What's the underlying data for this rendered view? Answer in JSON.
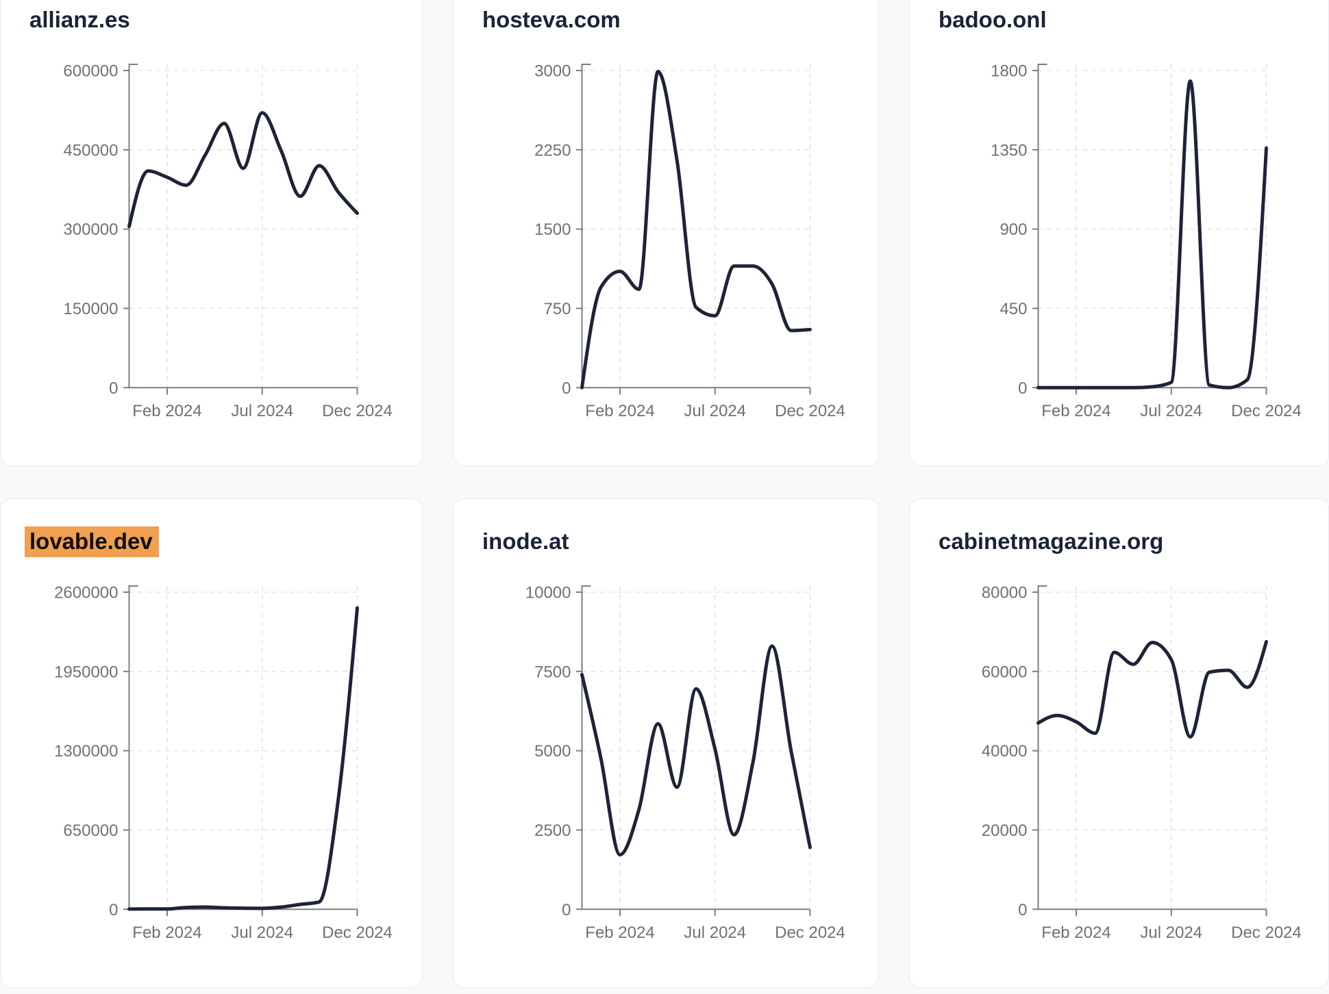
{
  "page": {
    "background_color": "#f8f9fb",
    "layout": "3x2 grid of chart cards"
  },
  "theme": {
    "card_background": "#ffffff",
    "card_border_color": "#e8ebf0",
    "title_color": "#1a2337",
    "highlight_color": "#f0a04f",
    "highlight_text_color": "#0e0e0e",
    "line_color": "#1d2438",
    "axis_color": "#7a7e83",
    "tick_label_color": "#6d7175",
    "gridline_color": "#e4e5e8"
  },
  "chart_data": [
    {
      "type": "line",
      "title": "allianz.es",
      "highlighted": false,
      "x_tick_labels": [
        "Feb 2024",
        "Jul 2024",
        "Dec 2024"
      ],
      "x_tick_positions": [
        2,
        7,
        12
      ],
      "x_points": 13,
      "y_ticks": [
        0,
        150000,
        300000,
        450000,
        600000
      ],
      "ylim": [
        0,
        600000
      ],
      "grid": "dashed",
      "values": [
        305000,
        410000,
        398000,
        383000,
        440000,
        500000,
        415000,
        520000,
        448000,
        362000,
        420000,
        370000,
        330000
      ]
    },
    {
      "type": "line",
      "title": "hosteva.com",
      "highlighted": false,
      "x_tick_labels": [
        "Feb 2024",
        "Jul 2024",
        "Dec 2024"
      ],
      "x_tick_positions": [
        2,
        7,
        12
      ],
      "x_points": 13,
      "y_ticks": [
        0,
        750,
        1500,
        2250,
        3000
      ],
      "ylim": [
        0,
        3000
      ],
      "grid": "dashed",
      "values": [
        0,
        950,
        1100,
        930,
        2990,
        2150,
        760,
        680,
        1150,
        1150,
        980,
        540,
        550
      ]
    },
    {
      "type": "line",
      "title": "badoo.onl",
      "highlighted": false,
      "x_tick_labels": [
        "Feb 2024",
        "Jul 2024",
        "Dec 2024"
      ],
      "x_tick_positions": [
        2,
        7,
        12
      ],
      "x_points": 13,
      "y_ticks": [
        0,
        450,
        900,
        1350,
        1800
      ],
      "ylim": [
        0,
        1800
      ],
      "grid": "dashed",
      "values": [
        0,
        0,
        0,
        0,
        0,
        0,
        5,
        30,
        1740,
        15,
        0,
        45,
        1360
      ]
    },
    {
      "type": "line",
      "title": "lovable.dev",
      "highlighted": true,
      "x_tick_labels": [
        "Feb 2024",
        "Jul 2024",
        "Dec 2024"
      ],
      "x_tick_positions": [
        2,
        7,
        12
      ],
      "x_points": 13,
      "y_ticks": [
        0,
        650000,
        1300000,
        1950000,
        2600000
      ],
      "ylim": [
        0,
        2600000
      ],
      "grid": "dashed",
      "values": [
        2000,
        3000,
        2500,
        15000,
        18000,
        12000,
        9000,
        8000,
        18000,
        40000,
        60000,
        900000,
        2470000
      ]
    },
    {
      "type": "line",
      "title": "inode.at",
      "highlighted": false,
      "x_tick_labels": [
        "Feb 2024",
        "Jul 2024",
        "Dec 2024"
      ],
      "x_tick_positions": [
        2,
        7,
        12
      ],
      "x_points": 13,
      "y_ticks": [
        0,
        2500,
        5000,
        7500,
        10000
      ],
      "ylim": [
        0,
        10000
      ],
      "grid": "dashed",
      "values": [
        7400,
        4750,
        1720,
        3150,
        5850,
        3850,
        6950,
        5050,
        2350,
        4650,
        8300,
        5000,
        1950
      ]
    },
    {
      "type": "line",
      "title": "cabinetmagazine.org",
      "highlighted": false,
      "x_tick_labels": [
        "Feb 2024",
        "Jul 2024",
        "Dec 2024"
      ],
      "x_tick_positions": [
        2,
        7,
        12
      ],
      "x_points": 13,
      "y_ticks": [
        0,
        20000,
        40000,
        60000,
        80000
      ],
      "ylim": [
        0,
        80000
      ],
      "grid": "dashed",
      "values": [
        47000,
        48900,
        47300,
        44400,
        64800,
        61800,
        67300,
        63000,
        43500,
        59800,
        60300,
        56000,
        67500
      ]
    }
  ]
}
